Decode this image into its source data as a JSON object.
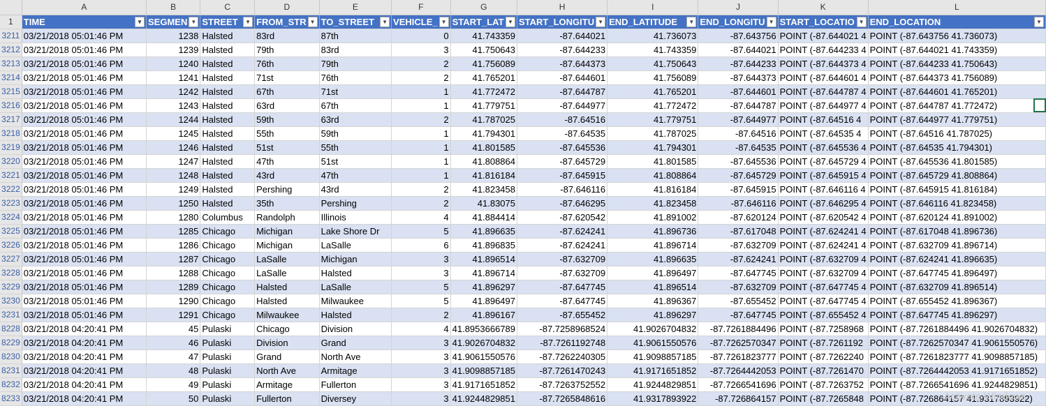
{
  "columns": [
    "A",
    "B",
    "C",
    "D",
    "E",
    "F",
    "G",
    "H",
    "I",
    "J",
    "K",
    "L"
  ],
  "header_row_number": "1",
  "headers": [
    "TIME",
    "SEGMENT_ID",
    "STREET",
    "FROM_STREET",
    "TO_STREET",
    "VEHICLE_COUNT",
    "START_LATITUDE",
    "START_LONGITUDE",
    "END_LATITUDE",
    "END_LONGITUDE",
    "START_LOCATION",
    "END_LOCATION"
  ],
  "header_display": [
    "TIME",
    "SEGMEN",
    "STREET",
    "FROM_STR",
    "TO_STREET",
    "VEHICLE_",
    "START_LAT",
    "START_LONGITU",
    "END_LATITUDE",
    "END_LONGITU",
    "START_LOCATIO",
    "END_LOCATION"
  ],
  "rows": [
    {
      "num": "3211",
      "cells": [
        "03/21/2018 05:01:46 PM",
        "1238",
        "Halsted",
        "83rd",
        "87th",
        "0",
        "41.743359",
        "-87.644021",
        "41.736073",
        "-87.643756",
        "POINT (-87.644021 4",
        "POINT (-87.643756 41.736073)"
      ]
    },
    {
      "num": "3212",
      "cells": [
        "03/21/2018 05:01:46 PM",
        "1239",
        "Halsted",
        "79th",
        "83rd",
        "3",
        "41.750643",
        "-87.644233",
        "41.743359",
        "-87.644021",
        "POINT (-87.644233 4",
        "POINT (-87.644021 41.743359)"
      ]
    },
    {
      "num": "3213",
      "cells": [
        "03/21/2018 05:01:46 PM",
        "1240",
        "Halsted",
        "76th",
        "79th",
        "2",
        "41.756089",
        "-87.644373",
        "41.750643",
        "-87.644233",
        "POINT (-87.644373 4",
        "POINT (-87.644233 41.750643)"
      ]
    },
    {
      "num": "3214",
      "cells": [
        "03/21/2018 05:01:46 PM",
        "1241",
        "Halsted",
        "71st",
        "76th",
        "2",
        "41.765201",
        "-87.644601",
        "41.756089",
        "-87.644373",
        "POINT (-87.644601 4",
        "POINT (-87.644373 41.756089)"
      ]
    },
    {
      "num": "3215",
      "cells": [
        "03/21/2018 05:01:46 PM",
        "1242",
        "Halsted",
        "67th",
        "71st",
        "1",
        "41.772472",
        "-87.644787",
        "41.765201",
        "-87.644601",
        "POINT (-87.644787 4",
        "POINT (-87.644601 41.765201)"
      ]
    },
    {
      "num": "3216",
      "cells": [
        "03/21/2018 05:01:46 PM",
        "1243",
        "Halsted",
        "63rd",
        "67th",
        "1",
        "41.779751",
        "-87.644977",
        "41.772472",
        "-87.644787",
        "POINT (-87.644977 4",
        "POINT (-87.644787 41.772472)"
      ]
    },
    {
      "num": "3217",
      "cells": [
        "03/21/2018 05:01:46 PM",
        "1244",
        "Halsted",
        "59th",
        "63rd",
        "2",
        "41.787025",
        "-87.64516",
        "41.779751",
        "-87.644977",
        "POINT (-87.64516 4",
        "POINT (-87.644977 41.779751)"
      ]
    },
    {
      "num": "3218",
      "cells": [
        "03/21/2018 05:01:46 PM",
        "1245",
        "Halsted",
        "55th",
        "59th",
        "1",
        "41.794301",
        "-87.64535",
        "41.787025",
        "-87.64516",
        "POINT (-87.64535 4",
        "POINT (-87.64516 41.787025)"
      ]
    },
    {
      "num": "3219",
      "cells": [
        "03/21/2018 05:01:46 PM",
        "1246",
        "Halsted",
        "51st",
        "55th",
        "1",
        "41.801585",
        "-87.645536",
        "41.794301",
        "-87.64535",
        "POINT (-87.645536 4",
        "POINT (-87.64535 41.794301)"
      ]
    },
    {
      "num": "3220",
      "cells": [
        "03/21/2018 05:01:46 PM",
        "1247",
        "Halsted",
        "47th",
        "51st",
        "1",
        "41.808864",
        "-87.645729",
        "41.801585",
        "-87.645536",
        "POINT (-87.645729 4",
        "POINT (-87.645536 41.801585)"
      ]
    },
    {
      "num": "3221",
      "cells": [
        "03/21/2018 05:01:46 PM",
        "1248",
        "Halsted",
        "43rd",
        "47th",
        "1",
        "41.816184",
        "-87.645915",
        "41.808864",
        "-87.645729",
        "POINT (-87.645915 4",
        "POINT (-87.645729 41.808864)"
      ]
    },
    {
      "num": "3222",
      "cells": [
        "03/21/2018 05:01:46 PM",
        "1249",
        "Halsted",
        "Pershing",
        "43rd",
        "2",
        "41.823458",
        "-87.646116",
        "41.816184",
        "-87.645915",
        "POINT (-87.646116 4",
        "POINT (-87.645915 41.816184)"
      ]
    },
    {
      "num": "3223",
      "cells": [
        "03/21/2018 05:01:46 PM",
        "1250",
        "Halsted",
        "35th",
        "Pershing",
        "2",
        "41.83075",
        "-87.646295",
        "41.823458",
        "-87.646116",
        "POINT (-87.646295 4",
        "POINT (-87.646116 41.823458)"
      ]
    },
    {
      "num": "3224",
      "cells": [
        "03/21/2018 05:01:46 PM",
        "1280",
        "Columbus",
        "Randolph",
        "Illinois",
        "4",
        "41.884414",
        "-87.620542",
        "41.891002",
        "-87.620124",
        "POINT (-87.620542 4",
        "POINT (-87.620124 41.891002)"
      ]
    },
    {
      "num": "3225",
      "cells": [
        "03/21/2018 05:01:46 PM",
        "1285",
        "Chicago",
        "Michigan",
        "Lake Shore Dr",
        "5",
        "41.896635",
        "-87.624241",
        "41.896736",
        "-87.617048",
        "POINT (-87.624241 4",
        "POINT (-87.617048 41.896736)"
      ]
    },
    {
      "num": "3226",
      "cells": [
        "03/21/2018 05:01:46 PM",
        "1286",
        "Chicago",
        "Michigan",
        "LaSalle",
        "6",
        "41.896835",
        "-87.624241",
        "41.896714",
        "-87.632709",
        "POINT (-87.624241 4",
        "POINT (-87.632709 41.896714)"
      ]
    },
    {
      "num": "3227",
      "cells": [
        "03/21/2018 05:01:46 PM",
        "1287",
        "Chicago",
        "LaSalle",
        "Michigan",
        "3",
        "41.896514",
        "-87.632709",
        "41.896635",
        "-87.624241",
        "POINT (-87.632709 4",
        "POINT (-87.624241 41.896635)"
      ]
    },
    {
      "num": "3228",
      "cells": [
        "03/21/2018 05:01:46 PM",
        "1288",
        "Chicago",
        "LaSalle",
        "Halsted",
        "3",
        "41.896714",
        "-87.632709",
        "41.896497",
        "-87.647745",
        "POINT (-87.632709 4",
        "POINT (-87.647745 41.896497)"
      ]
    },
    {
      "num": "3229",
      "cells": [
        "03/21/2018 05:01:46 PM",
        "1289",
        "Chicago",
        "Halsted",
        "LaSalle",
        "5",
        "41.896297",
        "-87.647745",
        "41.896514",
        "-87.632709",
        "POINT (-87.647745 4",
        "POINT (-87.632709 41.896514)"
      ]
    },
    {
      "num": "3230",
      "cells": [
        "03/21/2018 05:01:46 PM",
        "1290",
        "Chicago",
        "Halsted",
        "Milwaukee",
        "5",
        "41.896497",
        "-87.647745",
        "41.896367",
        "-87.655452",
        "POINT (-87.647745 4",
        "POINT (-87.655452 41.896367)"
      ]
    },
    {
      "num": "3231",
      "cells": [
        "03/21/2018 05:01:46 PM",
        "1291",
        "Chicago",
        "Milwaukee",
        "Halsted",
        "2",
        "41.896167",
        "-87.655452",
        "41.896297",
        "-87.647745",
        "POINT (-87.655452 4",
        "POINT (-87.647745 41.896297)"
      ]
    },
    {
      "num": "8228",
      "cells": [
        "03/21/2018 04:20:41 PM",
        "45",
        "Pulaski",
        "Chicago",
        "Division",
        "4",
        "41.8953666789",
        "-87.7258968524",
        "41.9026704832",
        "-87.7261884496",
        "POINT (-87.7258968",
        "POINT (-87.7261884496 41.9026704832)"
      ]
    },
    {
      "num": "8229",
      "cells": [
        "03/21/2018 04:20:41 PM",
        "46",
        "Pulaski",
        "Division",
        "Grand",
        "3",
        "41.9026704832",
        "-87.7261192748",
        "41.9061550576",
        "-87.7262570347",
        "POINT (-87.7261192",
        "POINT (-87.7262570347 41.9061550576)"
      ]
    },
    {
      "num": "8230",
      "cells": [
        "03/21/2018 04:20:41 PM",
        "47",
        "Pulaski",
        "Grand",
        "North Ave",
        "3",
        "41.9061550576",
        "-87.7262240305",
        "41.9098857185",
        "-87.7261823777",
        "POINT (-87.7262240",
        "POINT (-87.7261823777 41.9098857185)"
      ]
    },
    {
      "num": "8231",
      "cells": [
        "03/21/2018 04:20:41 PM",
        "48",
        "Pulaski",
        "North Ave",
        "Armitage",
        "3",
        "41.9098857185",
        "-87.7261470243",
        "41.9171651852",
        "-87.7264442053",
        "POINT (-87.7261470",
        "POINT (-87.7264442053 41.9171651852)"
      ]
    },
    {
      "num": "8232",
      "cells": [
        "03/21/2018 04:20:41 PM",
        "49",
        "Pulaski",
        "Armitage",
        "Fullerton",
        "3",
        "41.9171651852",
        "-87.7263752552",
        "41.9244829851",
        "-87.7266541696",
        "POINT (-87.7263752",
        "POINT (-87.7266541696 41.9244829851)"
      ]
    },
    {
      "num": "8233",
      "cells": [
        "03/21/2018 04:20:41 PM",
        "50",
        "Pulaski",
        "Fullerton",
        "Diversey",
        "3",
        "41.9244829851",
        "-87.7265848616",
        "41.9317893922",
        "-87.726864157",
        "POINT (-87.7265848",
        "POINT (-87.726864157 41.9317893922)"
      ]
    }
  ],
  "watermark": "Activate Windows",
  "colors": {
    "header_bg": "#4472c4",
    "band_bg": "#d9e1f2",
    "grid_header_bg": "#e6e6e6",
    "selection": "#217346"
  }
}
